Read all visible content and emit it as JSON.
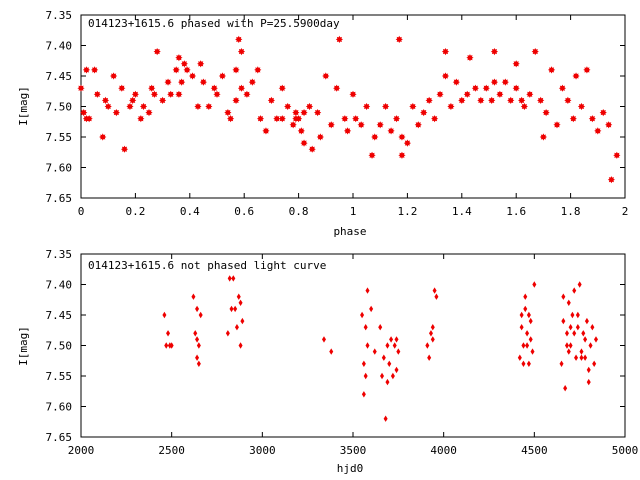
{
  "chart_data": [
    {
      "type": "scatter",
      "title": "014123+1615.6 phased with P=25.5900day",
      "xlabel": "phase",
      "ylabel": "I[mag]",
      "xlim": [
        0,
        2
      ],
      "ylim": [
        7.35,
        7.65
      ],
      "y_inverted": true,
      "x_ticks": [
        0,
        0.2,
        0.4,
        0.6,
        0.8,
        1,
        1.2,
        1.4,
        1.6,
        1.8,
        2
      ],
      "y_ticks": [
        7.35,
        7.4,
        7.45,
        7.5,
        7.55,
        7.6,
        7.65
      ],
      "marker": "star",
      "color": "#ee0000",
      "grid": false,
      "series": [
        {
          "x": [
            0.0,
            0.01,
            0.02,
            0.02,
            0.03,
            0.06,
            0.08,
            0.09,
            0.1,
            0.12,
            0.13,
            0.15,
            0.16,
            0.18,
            0.19,
            0.2,
            0.22,
            0.23,
            0.25,
            0.26,
            0.27,
            0.28,
            0.3,
            0.32,
            0.33,
            0.35,
            0.36,
            0.37,
            0.38,
            0.39,
            0.41,
            0.43,
            0.44,
            0.45,
            0.47,
            0.49,
            0.5,
            0.52,
            0.54,
            0.55,
            0.57,
            0.58,
            0.59,
            0.61,
            0.63,
            0.65,
            0.66,
            0.68,
            0.7,
            0.72,
            0.74,
            0.76,
            0.78,
            0.79,
            0.8,
            0.81,
            0.82,
            0.84,
            0.85,
            0.87,
            0.88,
            0.9,
            0.92,
            0.94,
            0.95,
            0.97,
            0.98,
            1.0,
            1.01,
            1.03,
            1.05,
            1.07,
            1.08,
            1.1,
            1.12,
            1.14,
            1.16,
            1.17,
            1.18,
            1.2,
            1.22,
            1.24,
            1.26,
            1.28,
            1.3,
            1.32,
            1.34,
            1.36,
            1.38,
            1.4,
            1.42,
            1.43,
            1.45,
            1.47,
            1.49,
            1.51,
            1.52,
            1.54,
            1.56,
            1.58,
            1.6,
            1.62,
            1.63,
            1.65,
            1.67,
            1.69,
            1.71,
            1.73,
            1.75,
            1.77,
            1.79,
            1.81,
            1.82,
            1.84,
            1.86,
            1.88,
            1.9,
            1.92,
            1.94,
            1.95,
            1.97,
            0.57,
            0.36,
            0.59,
            0.74,
            0.79,
            1.18,
            1.52,
            1.6,
            0.05,
            0.82,
            1.34,
            1.7
          ],
          "y": [
            7.47,
            7.51,
            7.44,
            7.52,
            7.52,
            7.48,
            7.55,
            7.49,
            7.5,
            7.45,
            7.51,
            7.47,
            7.57,
            7.5,
            7.49,
            7.48,
            7.52,
            7.5,
            7.51,
            7.47,
            7.48,
            7.41,
            7.49,
            7.46,
            7.48,
            7.44,
            7.42,
            7.46,
            7.43,
            7.44,
            7.45,
            7.5,
            7.43,
            7.46,
            7.5,
            7.47,
            7.48,
            7.45,
            7.51,
            7.52,
            7.49,
            7.39,
            7.41,
            7.48,
            7.46,
            7.44,
            7.52,
            7.54,
            7.49,
            7.52,
            7.47,
            7.5,
            7.53,
            7.51,
            7.52,
            7.54,
            7.56,
            7.5,
            7.57,
            7.51,
            7.55,
            7.45,
            7.53,
            7.47,
            7.39,
            7.52,
            7.54,
            7.48,
            7.52,
            7.53,
            7.5,
            7.58,
            7.55,
            7.53,
            7.5,
            7.54,
            7.52,
            7.39,
            7.55,
            7.56,
            7.5,
            7.53,
            7.51,
            7.49,
            7.52,
            7.48,
            7.41,
            7.5,
            7.46,
            7.49,
            7.48,
            7.42,
            7.47,
            7.49,
            7.47,
            7.49,
            7.41,
            7.48,
            7.46,
            7.49,
            7.47,
            7.49,
            7.5,
            7.48,
            7.41,
            7.49,
            7.51,
            7.44,
            7.53,
            7.47,
            7.49,
            7.52,
            7.45,
            7.5,
            7.44,
            7.52,
            7.54,
            7.51,
            7.53,
            7.62,
            7.58,
            7.44,
            7.48,
            7.47,
            7.52,
            7.52,
            7.58,
            7.46,
            7.43,
            7.44,
            7.51,
            7.45,
            7.55
          ]
        }
      ]
    },
    {
      "type": "scatter",
      "title": "014123+1615.6 not phased light curve",
      "xlabel": "hjd0",
      "ylabel": "I[mag]",
      "xlim": [
        2000,
        5000
      ],
      "ylim": [
        7.35,
        7.65
      ],
      "y_inverted": true,
      "x_ticks": [
        2000,
        2500,
        3000,
        3500,
        4000,
        4500,
        5000
      ],
      "y_ticks": [
        7.35,
        7.4,
        7.45,
        7.5,
        7.55,
        7.6,
        7.65
      ],
      "marker": "diamond",
      "color": "#ee0000",
      "grid": false,
      "series": [
        {
          "x": [
            2460,
            2470,
            2480,
            2490,
            2500,
            2620,
            2630,
            2640,
            2640,
            2650,
            2650,
            2660,
            2640,
            2820,
            2830,
            2840,
            2850,
            2860,
            2870,
            2880,
            2810,
            2880,
            2890,
            3340,
            3380,
            3550,
            3560,
            3560,
            3570,
            3570,
            3580,
            3580,
            3600,
            3620,
            3650,
            3660,
            3670,
            3680,
            3690,
            3690,
            3700,
            3710,
            3720,
            3730,
            3740,
            3750,
            3740,
            3910,
            3920,
            3930,
            3940,
            3950,
            3960,
            3940,
            4420,
            4430,
            4440,
            4450,
            4460,
            4470,
            4480,
            4490,
            4500,
            4430,
            4440,
            4450,
            4460,
            4470,
            4480,
            4650,
            4660,
            4670,
            4680,
            4690,
            4700,
            4710,
            4720,
            4730,
            4740,
            4750,
            4760,
            4770,
            4780,
            4790,
            4800,
            4810,
            4820,
            4830,
            4840,
            4680,
            4720,
            4760,
            4800,
            4690,
            4740,
            4780,
            4660,
            4700
          ],
          "y": [
            7.45,
            7.5,
            7.48,
            7.5,
            7.5,
            7.42,
            7.48,
            7.52,
            7.44,
            7.5,
            7.53,
            7.45,
            7.49,
            7.39,
            7.44,
            7.39,
            7.44,
            7.47,
            7.42,
            7.43,
            7.48,
            7.5,
            7.46,
            7.49,
            7.51,
            7.45,
            7.53,
            7.58,
            7.47,
            7.55,
            7.5,
            7.41,
            7.44,
            7.51,
            7.47,
            7.55,
            7.52,
            7.62,
            7.56,
            7.5,
            7.53,
            7.49,
            7.55,
            7.5,
            7.54,
            7.51,
            7.49,
            7.5,
            7.52,
            7.48,
            7.47,
            7.41,
            7.42,
            7.49,
            7.52,
            7.45,
            7.5,
            7.42,
            7.48,
            7.53,
            7.46,
            7.51,
            7.4,
            7.47,
            7.53,
            7.44,
            7.5,
            7.45,
            7.49,
            7.53,
            7.46,
            7.57,
            7.48,
            7.43,
            7.5,
            7.45,
            7.41,
            7.52,
            7.47,
            7.4,
            7.51,
            7.48,
            7.52,
            7.46,
            7.54,
            7.5,
            7.47,
            7.53,
            7.49,
            7.5,
            7.48,
            7.52,
            7.56,
            7.51,
            7.45,
            7.49,
            7.42,
            7.47
          ]
        }
      ]
    }
  ]
}
